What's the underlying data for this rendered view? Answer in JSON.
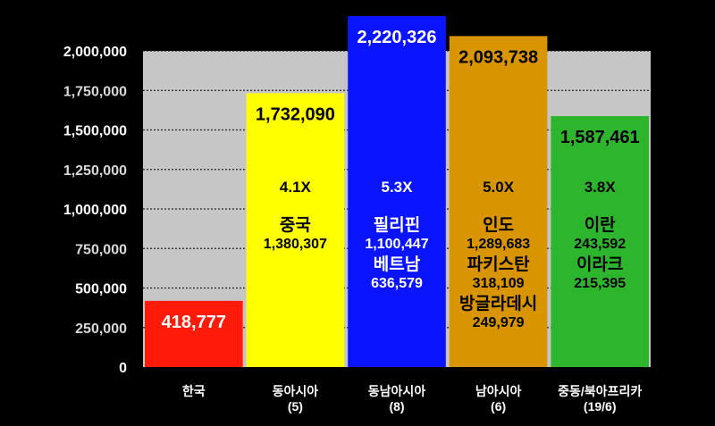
{
  "colors": {
    "background": "#000000",
    "plot_area": "#c6c6c6",
    "gridline": "#222222",
    "tick_label": "#ffffff",
    "tick_label_dim": "#d9d9d9"
  },
  "chart_data": {
    "type": "bar",
    "yticks": [
      0,
      250000,
      500000,
      750000,
      1000000,
      1250000,
      1500000,
      1750000,
      2000000
    ],
    "ytick_labels": [
      "0",
      "250,000",
      "500,000",
      "750,000",
      "1,000,000",
      "1,250,000",
      "1,500,000",
      "1,750,000",
      "2,000,000"
    ],
    "ylim": [
      0,
      2000000
    ],
    "grid": true,
    "categories": [
      {
        "name": "한국",
        "sub": "",
        "value": 418777,
        "value_label": "418,777",
        "color": "#ff1a0a",
        "text_color": "#ffffff",
        "multiplier": "",
        "countries": []
      },
      {
        "name": "동아시아",
        "sub": "(5)",
        "value": 1732090,
        "value_label": "1,732,090",
        "color": "#ffff00",
        "text_color": "#000000",
        "multiplier": "4.1X",
        "countries": [
          {
            "name": "중국",
            "value": "1,380,307"
          }
        ]
      },
      {
        "name": "동남아시아",
        "sub": "(8)",
        "value": 2220326,
        "value_label": "2,220,326",
        "color": "#0a14ff",
        "text_color": "#ffffff",
        "multiplier": "5.3X",
        "countries": [
          {
            "name": "필리핀",
            "value": "1,100,447"
          },
          {
            "name": "베트남",
            "value": "636,579"
          }
        ]
      },
      {
        "name": "남아시아",
        "sub": "(6)",
        "value": 2093738,
        "value_label": "2,093,738",
        "color": "#d99500",
        "text_color": "#000000",
        "multiplier": "5.0X",
        "countries": [
          {
            "name": "인도",
            "value": "1,289,683"
          },
          {
            "name": "파키스탄",
            "value": "318,109"
          },
          {
            "name": "방글라데시",
            "value": "249,979"
          }
        ]
      },
      {
        "name": "중동/북아프리카",
        "sub": "(19/6)",
        "value": 1587461,
        "value_label": "1,587,461",
        "color": "#2db52d",
        "text_color": "#000000",
        "multiplier": "3.8X",
        "countries": [
          {
            "name": "이란",
            "value": "243,592"
          },
          {
            "name": "이라크",
            "value": "215,395"
          }
        ]
      }
    ]
  }
}
